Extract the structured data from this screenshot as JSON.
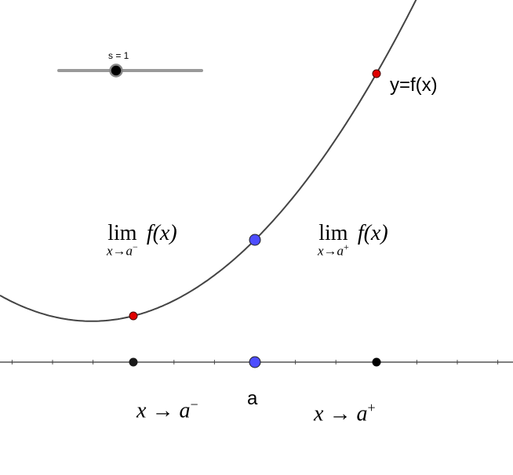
{
  "slider": {
    "label": "s = 1",
    "value": 1,
    "fraction": 0.4
  },
  "curve_label": "y=f(x)",
  "point_label_a": "a",
  "limits": {
    "left": {
      "word": "lim",
      "sub_var": "x",
      "sub_arrow": "→",
      "sub_base": "a",
      "sub_sign": "−",
      "func": "f(x)"
    },
    "right": {
      "word": "lim",
      "sub_var": "x",
      "sub_arrow": "→",
      "sub_base": "a",
      "sub_sign": "+",
      "func": "f(x)"
    }
  },
  "approach": {
    "left": {
      "var": "x",
      "arrow": "→",
      "base": "a",
      "sign": "−"
    },
    "right": {
      "var": "x",
      "arrow": "→",
      "base": "a",
      "sign": "+"
    }
  },
  "colors": {
    "curve": "#444444",
    "red_point": "#e00000",
    "blue_point": "#4d4dff",
    "black_point": "#1a1a1a",
    "slider_track": "#999999"
  }
}
